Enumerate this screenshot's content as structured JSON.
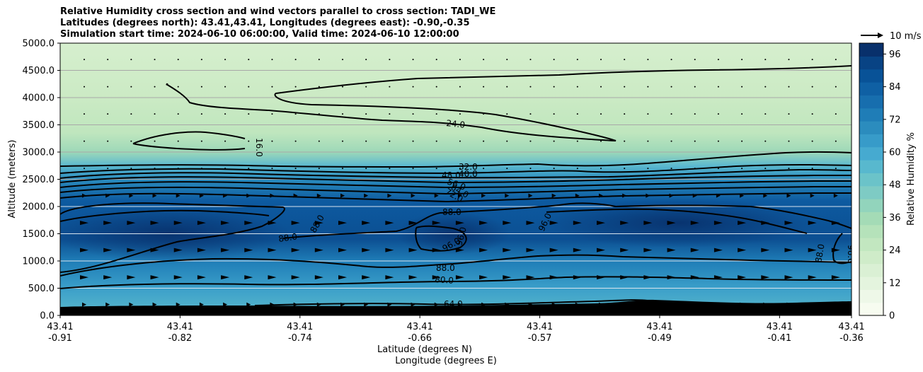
{
  "title_lines": [
    "Relative Humidity cross section and wind vectors parallel to cross section: TADI_WE",
    "Latitudes (degrees north): 43.41,43.41, Longitudes (degrees east): -0.90,-0.35",
    "Simulation start time: 2024-06-10 06:00:00, Valid time: 2024-06-10 12:00:00"
  ],
  "chart_data": {
    "type": "contour",
    "ylabel": "Altitude (meters)",
    "xlabel_lines": [
      "Latitude (degrees N)",
      "Longitude (degrees E)"
    ],
    "ylim": [
      0,
      5000
    ],
    "y_ticks": [
      "0.0",
      "500.0",
      "1000.0",
      "1500.0",
      "2000.0",
      "2500.0",
      "3000.0",
      "3500.0",
      "4000.0",
      "4500.0",
      "5000.0"
    ],
    "x_ticks": [
      {
        "lat": "43.41",
        "lon": "-0.91"
      },
      {
        "lat": "43.41",
        "lon": "-0.82"
      },
      {
        "lat": "43.41",
        "lon": "-0.74"
      },
      {
        "lat": "43.41",
        "lon": "-0.66"
      },
      {
        "lat": "43.41",
        "lon": "-0.57"
      },
      {
        "lat": "43.41",
        "lon": "-0.49"
      },
      {
        "lat": "43.41",
        "lon": "-0.41"
      },
      {
        "lat": "43.41",
        "lon": "-0.36"
      }
    ],
    "colorbar": {
      "label": "Relative Humidity %",
      "ticks": [
        "0",
        "12",
        "24",
        "36",
        "48",
        "60",
        "72",
        "84",
        "96"
      ],
      "range": [
        0,
        100
      ],
      "colors": [
        "#f7fcf0",
        "#eef8e8",
        "#e4f4de",
        "#daf0d4",
        "#cfecc9",
        "#c2e7c0",
        "#b5e2ba",
        "#a4dbb6",
        "#92d4bc",
        "#7ecbc4",
        "#6bc3c9",
        "#58b8ce",
        "#46aad0",
        "#379bc9",
        "#2b8cbe",
        "#1f7db7",
        "#176eae",
        "#0f60a4",
        "#085297",
        "#084384",
        "#08306b"
      ]
    },
    "contour_levels": [
      "16.0",
      "24.0",
      "32.0",
      "40.0",
      "48.0",
      "56.0",
      "64.0",
      "72.0",
      "80.0",
      "88.0",
      "96.0"
    ],
    "wind_reference": "10 m/s",
    "grid": true
  }
}
